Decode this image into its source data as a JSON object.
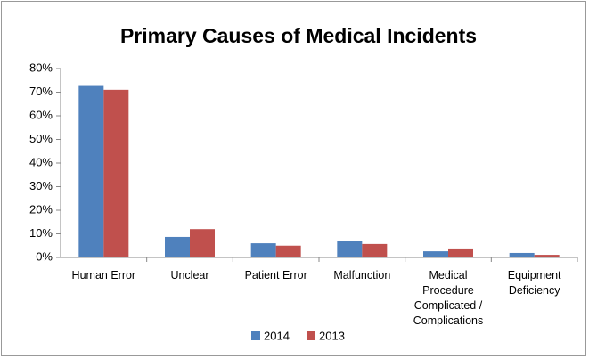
{
  "chart_data": {
    "type": "bar",
    "title": "Primary Causes of Medical Incidents",
    "categories": [
      "Human Error",
      "Unclear",
      "Patient Error",
      "Malfunction",
      "Medical Procedure Complicated / Complications",
      "Equipment Deficiency"
    ],
    "series": [
      {
        "name": "2014",
        "color": "#4f81bd",
        "values": [
          73,
          8.7,
          6,
          6.8,
          2.6,
          1.9
        ]
      },
      {
        "name": "2013",
        "color": "#c0504d",
        "values": [
          71,
          12,
          5,
          5.7,
          3.8,
          1.1
        ]
      }
    ],
    "ylim": [
      0,
      80
    ],
    "yticks": [
      {
        "value": 0,
        "label": "0%"
      },
      {
        "value": 10,
        "label": "10%"
      },
      {
        "value": 20,
        "label": "20%"
      },
      {
        "value": 30,
        "label": "30%"
      },
      {
        "value": 40,
        "label": "40%"
      },
      {
        "value": 50,
        "label": "50%"
      },
      {
        "value": 60,
        "label": "60%"
      },
      {
        "value": 70,
        "label": "70%"
      },
      {
        "value": 80,
        "label": "80%"
      }
    ],
    "grid": false,
    "legend": "bottom"
  }
}
